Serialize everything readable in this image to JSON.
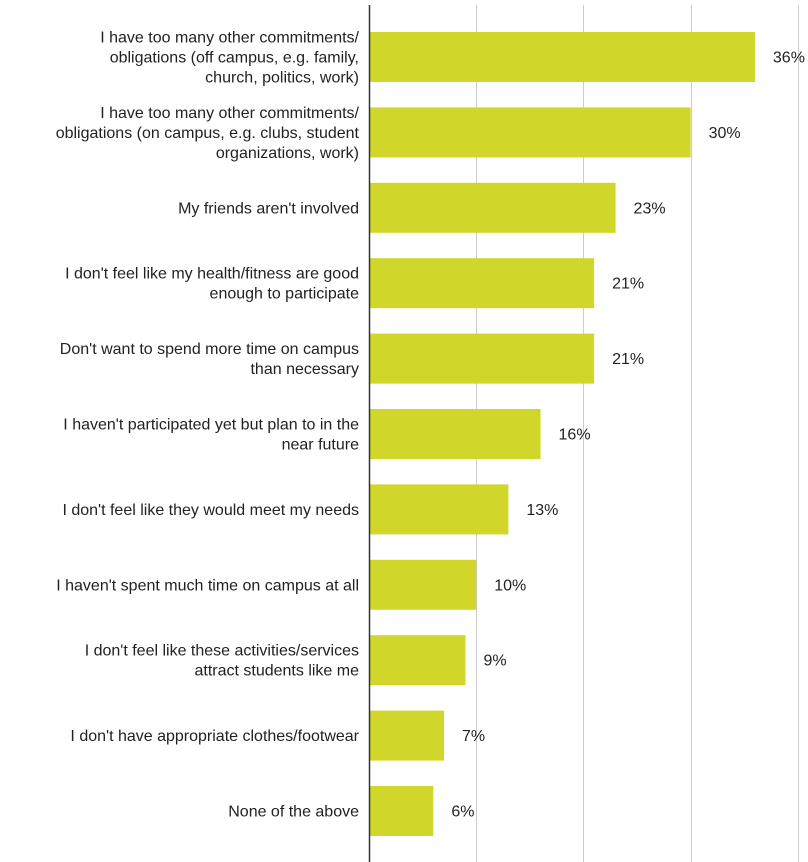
{
  "chart_data": {
    "type": "bar",
    "orientation": "horizontal",
    "categories": [
      [
        "I have too many other commitments/",
        "obligations (off campus, e.g. family,",
        "church, politics, work)"
      ],
      [
        "I have too many other commitments/",
        "obligations (on campus, e.g. clubs, student",
        "organizations, work)"
      ],
      [
        "My friends aren't involved"
      ],
      [
        "I don't feel like my health/fitness are good",
        "enough to participate"
      ],
      [
        "Don't want to spend more time on campus",
        "than necessary"
      ],
      [
        "I haven't participated yet but plan to in the",
        "near future"
      ],
      [
        "I don't feel like they would meet my needs"
      ],
      [
        "I haven't spent much time on campus at all"
      ],
      [
        "I don't feel like these activities/services",
        "attract students like me"
      ],
      [
        "I don't have appropriate clothes/footwear"
      ],
      [
        "None of the above"
      ]
    ],
    "values": [
      36,
      30,
      23,
      21,
      21,
      16,
      13,
      10,
      9,
      7,
      6
    ],
    "value_labels": [
      "36%",
      "30%",
      "23%",
      "21%",
      "21%",
      "16%",
      "13%",
      "10%",
      "9%",
      "7%",
      "6%"
    ],
    "xlim": [
      0,
      40
    ],
    "grid": true,
    "bar_color": "#d0d62a",
    "grid_color": "#cccccc",
    "axis_color": "#333333"
  }
}
